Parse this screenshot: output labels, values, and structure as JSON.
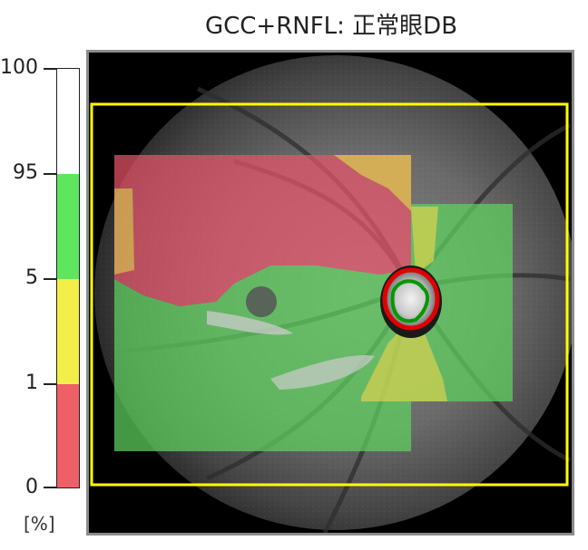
{
  "title": "GCC+RNFL: 正常眼DB",
  "scale": {
    "unit": "[%]",
    "ticks": [
      {
        "label": "100"
      },
      {
        "label": "95"
      },
      {
        "label": "5"
      },
      {
        "label": "1"
      },
      {
        "label": "0"
      }
    ],
    "bands": [
      {
        "name": "white",
        "color": "#ffffff"
      },
      {
        "name": "green",
        "color": "#5ee65e"
      },
      {
        "name": "yellow",
        "color": "#f2ee4a"
      },
      {
        "name": "red",
        "color": "#ef5f68"
      }
    ]
  },
  "colors": {
    "overlay_red": "#e8546a",
    "overlay_green": "#5ed25e",
    "overlay_yellow": "#d8d24e",
    "scan_box": "#ffff00",
    "disc_ring": "#e00000",
    "cup_contour": "#009900",
    "frame": "#8c8c8c"
  }
}
